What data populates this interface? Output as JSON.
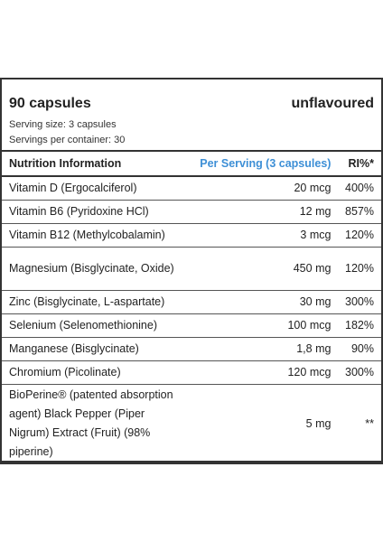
{
  "header": {
    "capsules": "90 capsules",
    "flavour": "unflavoured",
    "serving_size": "Serving size: 3 capsules",
    "servings_per_container": "Servings per container: 30"
  },
  "table": {
    "columns": [
      "Nutrition Information",
      "Per Serving (3 capsules)",
      "RI%*"
    ],
    "rows": [
      {
        "name": "Vitamin D (Ergocalciferol)",
        "amount": "20 mcg",
        "ri": "400%"
      },
      {
        "name": "Vitamin B6 (Pyridoxine HCl)",
        "amount": "12 mg",
        "ri": "857%"
      },
      {
        "name": "Vitamin B12 (Methylcobalamin)",
        "amount": "3 mcg",
        "ri": "120%"
      },
      {
        "name": "Magnesium (Bisglycinate, Oxide)",
        "amount": "450 mg",
        "ri": "120%"
      },
      {
        "name": "Zinc (Bisglycinate, L-aspartate)",
        "amount": "30 mg",
        "ri": "300%"
      },
      {
        "name": "Selenium (Selenomethionine)",
        "amount": "100 mcg",
        "ri": "182%"
      },
      {
        "name": "Manganese (Bisglycinate)",
        "amount": "1,8 mg",
        "ri": "90%"
      },
      {
        "name": "Chromium (Picolinate)",
        "amount": "120 mcg",
        "ri": "300%"
      },
      {
        "name": "BioPerine® (patented absorption agent) Black Pepper (Piper Nigrum) Extract (Fruit) (98% piperine)",
        "amount": "5 mg",
        "ri": "**"
      }
    ]
  }
}
